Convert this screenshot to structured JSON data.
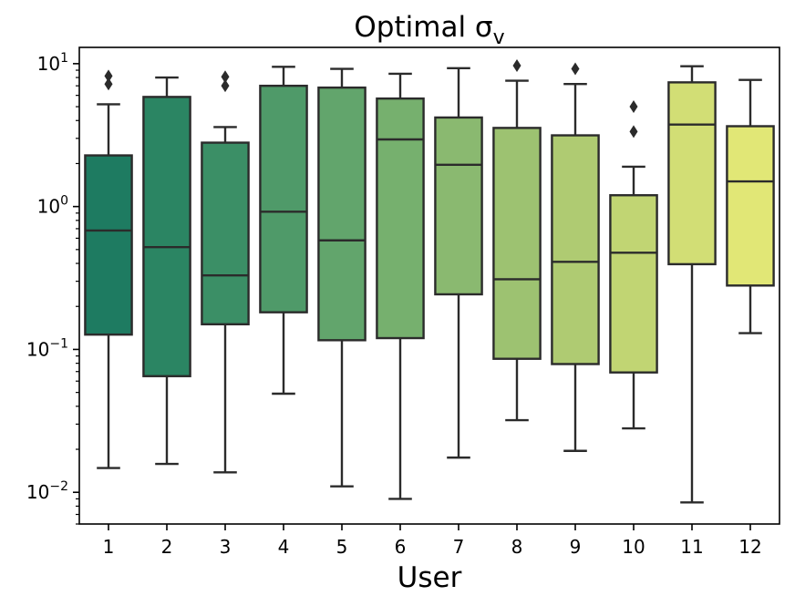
{
  "chart_data": {
    "type": "box",
    "title": "Optimal σ",
    "title_subscript": "v",
    "xlabel": "User",
    "ylabel": "",
    "yscale": "log",
    "ylim": [
      0.006,
      13
    ],
    "y_major_ticks": [
      {
        "value": 0.01,
        "base": "10",
        "exp": "−2"
      },
      {
        "value": 0.1,
        "base": "10",
        "exp": "−1"
      },
      {
        "value": 1,
        "base": "10",
        "exp": "0"
      },
      {
        "value": 10,
        "base": "10",
        "exp": "1"
      }
    ],
    "categories": [
      "1",
      "2",
      "3",
      "4",
      "5",
      "6",
      "7",
      "8",
      "9",
      "10",
      "11",
      "12"
    ],
    "boxes": [
      {
        "label": "1",
        "whislo": 0.0148,
        "q1": 0.127,
        "med": 0.68,
        "q3": 2.28,
        "whishi": 5.2,
        "fliers": [
          7.2,
          8.2
        ],
        "color": "#1e7b61"
      },
      {
        "label": "2",
        "whislo": 0.0158,
        "q1": 0.065,
        "med": 0.52,
        "q3": 5.85,
        "whishi": 8.0,
        "fliers": [],
        "color": "#2b8563"
      },
      {
        "label": "3",
        "whislo": 0.0138,
        "q1": 0.15,
        "med": 0.33,
        "q3": 2.8,
        "whishi": 3.6,
        "fliers": [
          7.0,
          8.1
        ],
        "color": "#3b8f66"
      },
      {
        "label": "4",
        "whislo": 0.049,
        "q1": 0.182,
        "med": 0.92,
        "q3": 7.0,
        "whishi": 9.5,
        "fliers": [],
        "color": "#4f9a69"
      },
      {
        "label": "5",
        "whislo": 0.011,
        "q1": 0.116,
        "med": 0.58,
        "q3": 6.8,
        "whishi": 9.2,
        "fliers": [],
        "color": "#62a56c"
      },
      {
        "label": "6",
        "whislo": 0.009,
        "q1": 0.12,
        "med": 2.95,
        "q3": 5.7,
        "whishi": 8.5,
        "fliers": [],
        "color": "#76b06e"
      },
      {
        "label": "7",
        "whislo": 0.0175,
        "q1": 0.243,
        "med": 1.96,
        "q3": 4.2,
        "whishi": 9.3,
        "fliers": [],
        "color": "#8ab970"
      },
      {
        "label": "8",
        "whislo": 0.032,
        "q1": 0.086,
        "med": 0.31,
        "q3": 3.55,
        "whishi": 7.6,
        "fliers": [
          9.7
        ],
        "color": "#9dc271"
      },
      {
        "label": "9",
        "whislo": 0.0195,
        "q1": 0.079,
        "med": 0.41,
        "q3": 3.15,
        "whishi": 7.2,
        "fliers": [
          9.2
        ],
        "color": "#afcb72"
      },
      {
        "label": "10",
        "whislo": 0.028,
        "q1": 0.069,
        "med": 0.475,
        "q3": 1.2,
        "whishi": 1.9,
        "fliers": [
          3.35,
          5.0
        ],
        "color": "#c1d573"
      },
      {
        "label": "11",
        "whislo": 0.0085,
        "q1": 0.395,
        "med": 3.75,
        "q3": 7.4,
        "whishi": 9.6,
        "fliers": [],
        "color": "#d2de75"
      },
      {
        "label": "12",
        "whislo": 0.13,
        "q1": 0.28,
        "med": 1.5,
        "q3": 3.65,
        "whishi": 7.7,
        "fliers": [],
        "color": "#e1e776"
      }
    ],
    "line_color": "#2b2b2b",
    "grid": false
  }
}
